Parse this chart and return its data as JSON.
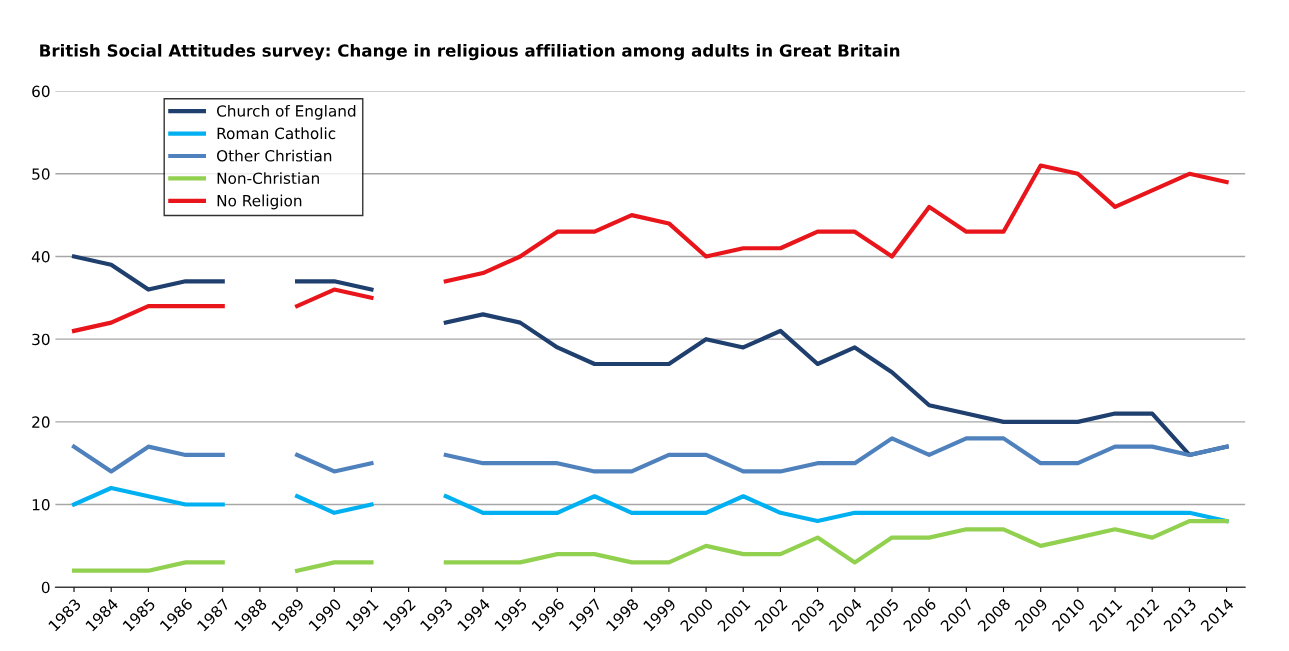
{
  "chart_data": {
    "type": "line",
    "title": "British Social Attitudes survey: Change in religious affiliation among adults in Great Britain",
    "categories": [
      "1983",
      "1984",
      "1985",
      "1986",
      "1987",
      "1988",
      "1989",
      "1990",
      "1991",
      "1992",
      "1993",
      "1994",
      "1995",
      "1996",
      "1997",
      "1998",
      "1999",
      "2000",
      "2001",
      "2002",
      "2003",
      "2004",
      "2005",
      "2006",
      "2007",
      "2008",
      "2009",
      "2010",
      "2011",
      "2012",
      "2013",
      "2014"
    ],
    "series": [
      {
        "name": "Church of England",
        "color": "#1f3f6e",
        "values": [
          40,
          39,
          36,
          37,
          37,
          null,
          37,
          37,
          36,
          null,
          32,
          33,
          32,
          29,
          27,
          27,
          27,
          30,
          29,
          31,
          27,
          29,
          26,
          22,
          21,
          20,
          20,
          20,
          21,
          21,
          16,
          17
        ]
      },
      {
        "name": "Roman Catholic",
        "color": "#00b0f0",
        "values": [
          10,
          12,
          11,
          10,
          10,
          null,
          11,
          9,
          10,
          null,
          11,
          9,
          9,
          9,
          11,
          9,
          9,
          9,
          11,
          9,
          8,
          9,
          9,
          9,
          9,
          9,
          9,
          9,
          9,
          9,
          9,
          8
        ]
      },
      {
        "name": "Other Christian",
        "color": "#4f81bd",
        "values": [
          17,
          14,
          17,
          16,
          16,
          null,
          16,
          14,
          15,
          null,
          16,
          15,
          15,
          15,
          14,
          14,
          16,
          16,
          14,
          14,
          15,
          15,
          18,
          16,
          18,
          18,
          15,
          15,
          17,
          17,
          16,
          17
        ]
      },
      {
        "name": "Non-Christian",
        "color": "#92d050",
        "values": [
          2,
          2,
          2,
          3,
          3,
          null,
          2,
          3,
          3,
          null,
          3,
          3,
          3,
          4,
          4,
          3,
          3,
          5,
          4,
          4,
          6,
          3,
          6,
          6,
          7,
          7,
          5,
          6,
          7,
          6,
          8,
          8
        ]
      },
      {
        "name": "No Religion",
        "color": "#e8151b",
        "values": [
          31,
          32,
          34,
          34,
          34,
          null,
          34,
          36,
          35,
          null,
          37,
          38,
          40,
          43,
          43,
          45,
          44,
          40,
          41,
          41,
          43,
          43,
          40,
          46,
          43,
          43,
          51,
          50,
          46,
          48,
          50,
          49
        ]
      }
    ],
    "ylim": [
      0,
      60
    ],
    "yticks": [
      0,
      10,
      20,
      30,
      40,
      50,
      60
    ],
    "grid": "y",
    "legend": "top left",
    "marker": "none",
    "line_style": "solid"
  }
}
